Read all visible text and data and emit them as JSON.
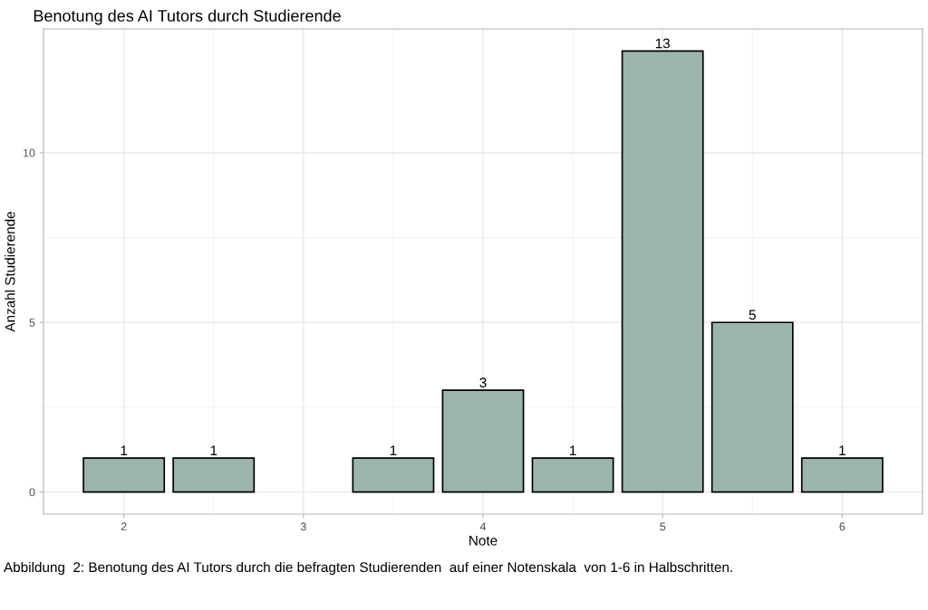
{
  "chart_data": {
    "type": "bar",
    "title": "Benotung des AI Tutors durch Studierende",
    "xlabel": "Note",
    "ylabel": "Anzahl Studierende",
    "x": [
      2,
      2.5,
      3.5,
      4,
      4.5,
      5,
      5.5,
      6
    ],
    "values": [
      1,
      1,
      1,
      3,
      1,
      13,
      5,
      1
    ],
    "color": "#9bb5ad",
    "data_labels": true,
    "xlim": [
      1.5525,
      6.4475
    ],
    "xticks": [
      2,
      3,
      4,
      5,
      6
    ],
    "ylim": [
      -0.65,
      13.65
    ],
    "yticks": [
      0,
      5,
      10
    ],
    "grid": true,
    "annotations": [
      "Abbildung  2: Benotung des AI Tutors durch die befragten Studierenden  auf einer Notenskala  von 1-6 in Halbschritten."
    ]
  }
}
